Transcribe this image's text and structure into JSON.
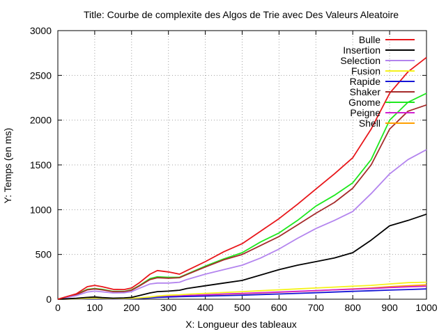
{
  "chart_data": {
    "type": "line",
    "title": "Title: Courbe de complexite des Algos de Trie avec Des Valeurs Aleatoire",
    "xlabel": "X: Longueur des tableaux",
    "ylabel": "Y: Temps (en ms)",
    "xlim": [
      0,
      1000
    ],
    "ylim": [
      0,
      3000
    ],
    "xticks": [
      0,
      100,
      200,
      300,
      400,
      500,
      600,
      700,
      800,
      900,
      1000
    ],
    "yticks": [
      0,
      500,
      1000,
      1500,
      2000,
      2500,
      3000
    ],
    "grid": true,
    "legend_position": "top-right",
    "x": [
      0,
      50,
      80,
      100,
      120,
      150,
      180,
      200,
      220,
      250,
      270,
      300,
      330,
      350,
      400,
      450,
      500,
      550,
      600,
      650,
      700,
      750,
      800,
      850,
      900,
      950,
      1000
    ],
    "series": [
      {
        "name": "Bulle",
        "color": "#e8161a",
        "values": [
          0,
          60,
          140,
          155,
          140,
          110,
          108,
          125,
          180,
          280,
          320,
          305,
          280,
          320,
          420,
          530,
          620,
          760,
          900,
          1060,
          1230,
          1400,
          1580,
          1900,
          2300,
          2540,
          2700
        ]
      },
      {
        "name": "Insertion",
        "color": "#000000",
        "values": [
          0,
          10,
          20,
          25,
          18,
          12,
          15,
          20,
          40,
          70,
          85,
          90,
          100,
          120,
          150,
          180,
          210,
          270,
          330,
          380,
          420,
          460,
          520,
          660,
          820,
          880,
          950
        ]
      },
      {
        "name": "Selection",
        "color": "#b384ee",
        "values": [
          0,
          40,
          80,
          90,
          82,
          70,
          72,
          85,
          120,
          170,
          180,
          180,
          190,
          220,
          280,
          330,
          380,
          460,
          560,
          680,
          790,
          880,
          980,
          1180,
          1400,
          1560,
          1670
        ]
      },
      {
        "name": "Fusion",
        "color": "#f5f21a",
        "values": [
          0,
          5,
          10,
          12,
          10,
          8,
          8,
          10,
          15,
          25,
          35,
          45,
          50,
          55,
          65,
          75,
          85,
          95,
          105,
          115,
          125,
          135,
          145,
          155,
          170,
          185,
          190
        ]
      },
      {
        "name": "Rapide",
        "color": "#1515d6",
        "values": [
          0,
          3,
          5,
          6,
          5,
          4,
          4,
          5,
          8,
          15,
          20,
          25,
          28,
          30,
          35,
          40,
          45,
          52,
          58,
          65,
          72,
          80,
          88,
          95,
          102,
          108,
          115
        ]
      },
      {
        "name": "Shaker",
        "color": "#a52a2a",
        "values": [
          0,
          50,
          105,
          115,
          105,
          85,
          85,
          100,
          145,
          220,
          240,
          235,
          240,
          275,
          360,
          440,
          500,
          600,
          700,
          830,
          960,
          1080,
          1240,
          1500,
          1900,
          2100,
          2170
        ]
      },
      {
        "name": "Gnome",
        "color": "#1ee81e",
        "values": [
          0,
          55,
          110,
          120,
          110,
          88,
          88,
          105,
          150,
          230,
          250,
          245,
          245,
          280,
          370,
          450,
          520,
          640,
          740,
          880,
          1040,
          1160,
          1300,
          1560,
          2000,
          2200,
          2300
        ]
      },
      {
        "name": "Peigne",
        "color": "#d11fd1",
        "values": [
          0,
          4,
          8,
          10,
          8,
          6,
          6,
          8,
          12,
          20,
          28,
          35,
          38,
          42,
          50,
          58,
          65,
          72,
          80,
          88,
          96,
          105,
          112,
          120,
          130,
          138,
          145
        ]
      },
      {
        "name": "Shell",
        "color": "#ff9f00",
        "values": [
          0,
          4,
          7,
          8,
          7,
          5,
          5,
          7,
          10,
          18,
          25,
          32,
          35,
          40,
          48,
          55,
          62,
          70,
          78,
          86,
          95,
          105,
          115,
          125,
          140,
          150,
          160
        ]
      }
    ]
  }
}
